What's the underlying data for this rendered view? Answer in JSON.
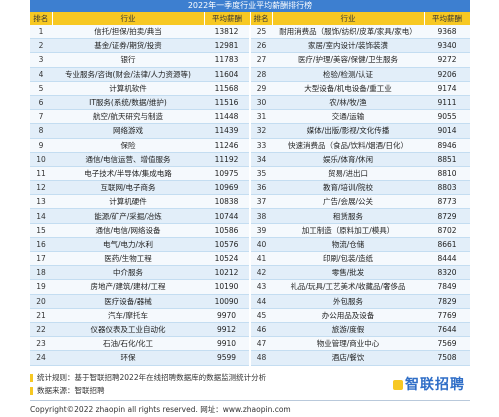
{
  "title": "2022年一季度行业平均薪酬排行榜",
  "headers": {
    "rank": "排名",
    "industry": "行业",
    "salary": "平均薪酬"
  },
  "rows": [
    {
      "l_rank": "1",
      "l_ind": "信托/担保/拍卖/典当",
      "l_sal": "13812",
      "r_rank": "25",
      "r_ind": "耐用消费品（服饰/纺织/皮革/家具/家电）",
      "r_sal": "9368"
    },
    {
      "l_rank": "2",
      "l_ind": "基金/证券/期货/投资",
      "l_sal": "12981",
      "r_rank": "26",
      "r_ind": "家居/室内设计/装饰装潢",
      "r_sal": "9340"
    },
    {
      "l_rank": "3",
      "l_ind": "银行",
      "l_sal": "11783",
      "r_rank": "27",
      "r_ind": "医疗/护理/美容/保健/卫生服务",
      "r_sal": "9272"
    },
    {
      "l_rank": "4",
      "l_ind": "专业服务/咨询(财会/法律/人力资源等)",
      "l_sal": "11604",
      "r_rank": "28",
      "r_ind": "检验/检测/认证",
      "r_sal": "9206"
    },
    {
      "l_rank": "5",
      "l_ind": "计算机软件",
      "l_sal": "11568",
      "r_rank": "29",
      "r_ind": "大型设备/机电设备/重工业",
      "r_sal": "9174"
    },
    {
      "l_rank": "6",
      "l_ind": "IT服务(系统/数据/维护)",
      "l_sal": "11516",
      "r_rank": "30",
      "r_ind": "农/林/牧/渔",
      "r_sal": "9111"
    },
    {
      "l_rank": "7",
      "l_ind": "航空/航天研究与制造",
      "l_sal": "11448",
      "r_rank": "31",
      "r_ind": "交通/运输",
      "r_sal": "9055"
    },
    {
      "l_rank": "8",
      "l_ind": "网络游戏",
      "l_sal": "11439",
      "r_rank": "32",
      "r_ind": "媒体/出版/影视/文化传播",
      "r_sal": "9014"
    },
    {
      "l_rank": "9",
      "l_ind": "保险",
      "l_sal": "11246",
      "r_rank": "33",
      "r_ind": "快速消费品（食品/饮料/烟酒/日化）",
      "r_sal": "8946"
    },
    {
      "l_rank": "10",
      "l_ind": "通信/电信运营、增值服务",
      "l_sal": "11192",
      "r_rank": "34",
      "r_ind": "娱乐/体育/休闲",
      "r_sal": "8851"
    },
    {
      "l_rank": "11",
      "l_ind": "电子技术/半导体/集成电路",
      "l_sal": "10975",
      "r_rank": "35",
      "r_ind": "贸易/进出口",
      "r_sal": "8810"
    },
    {
      "l_rank": "12",
      "l_ind": "互联网/电子商务",
      "l_sal": "10969",
      "r_rank": "36",
      "r_ind": "教育/培训/院校",
      "r_sal": "8803"
    },
    {
      "l_rank": "13",
      "l_ind": "计算机硬件",
      "l_sal": "10838",
      "r_rank": "37",
      "r_ind": "广告/会展/公关",
      "r_sal": "8773"
    },
    {
      "l_rank": "14",
      "l_ind": "能源/矿产/采掘/冶炼",
      "l_sal": "10744",
      "r_rank": "38",
      "r_ind": "租赁服务",
      "r_sal": "8729"
    },
    {
      "l_rank": "15",
      "l_ind": "通信/电信/网络设备",
      "l_sal": "10586",
      "r_rank": "39",
      "r_ind": "加工制造（原料加工/模具）",
      "r_sal": "8702"
    },
    {
      "l_rank": "16",
      "l_ind": "电气/电力/水利",
      "l_sal": "10576",
      "r_rank": "40",
      "r_ind": "物流/仓储",
      "r_sal": "8661"
    },
    {
      "l_rank": "17",
      "l_ind": "医药/生物工程",
      "l_sal": "10524",
      "r_rank": "41",
      "r_ind": "印刷/包装/造纸",
      "r_sal": "8444"
    },
    {
      "l_rank": "18",
      "l_ind": "中介服务",
      "l_sal": "10212",
      "r_rank": "42",
      "r_ind": "零售/批发",
      "r_sal": "8320"
    },
    {
      "l_rank": "19",
      "l_ind": "房地产/建筑/建材/工程",
      "l_sal": "10190",
      "r_rank": "43",
      "r_ind": "礼品/玩具/工艺美术/收藏品/奢侈品",
      "r_sal": "7849"
    },
    {
      "l_rank": "20",
      "l_ind": "医疗设备/器械",
      "l_sal": "10090",
      "r_rank": "44",
      "r_ind": "外包服务",
      "r_sal": "7829"
    },
    {
      "l_rank": "21",
      "l_ind": "汽车/摩托车",
      "l_sal": "9970",
      "r_rank": "45",
      "r_ind": "办公用品及设备",
      "r_sal": "7769"
    },
    {
      "l_rank": "22",
      "l_ind": "仪器仪表及工业自动化",
      "l_sal": "9912",
      "r_rank": "46",
      "r_ind": "旅游/度假",
      "r_sal": "7644"
    },
    {
      "l_rank": "23",
      "l_ind": "石油/石化/化工",
      "l_sal": "9910",
      "r_rank": "47",
      "r_ind": "物业管理/商业中心",
      "r_sal": "7569"
    },
    {
      "l_rank": "24",
      "l_ind": "环保",
      "l_sal": "9599",
      "r_rank": "48",
      "r_ind": "酒店/餐饮",
      "r_sal": "7508"
    }
  ],
  "footer": {
    "stat_rule": "统计规则：基于智联招聘2022年在线招聘数据库的数据监测统计分析",
    "data_source": "数据来源：智联招聘",
    "logo_text": "智联招聘",
    "copyright": "Copyright©2022 zhaopin all rights reserved. 网址：www.zhaopin.com"
  },
  "colors": {
    "title_bg": "#3d7fd0",
    "header_bg": "#f7c823",
    "row_even": "#e2eef9",
    "row_odd": "#f5f9fd",
    "logo": "#2f6ec7"
  }
}
